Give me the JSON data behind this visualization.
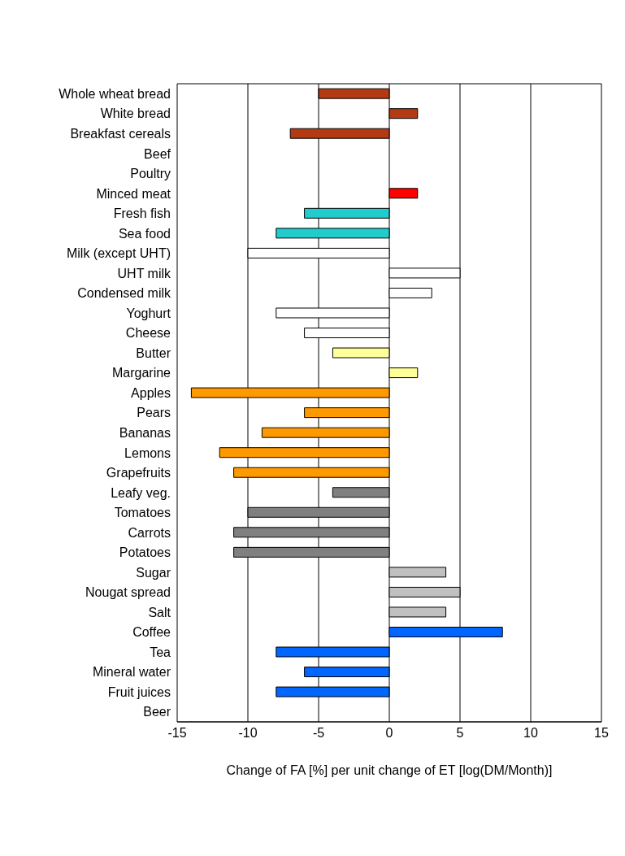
{
  "chart_data": {
    "type": "bar",
    "orientation": "horizontal",
    "xlabel": "Change of FA [%] per unit change of ET [log(DM/Month)]",
    "categories": [
      "Whole wheat bread",
      "White bread",
      "Breakfast cereals",
      "Beef",
      "Poultry",
      "Minced meat",
      "Fresh fish",
      "Sea food",
      "Milk (except UHT)",
      "UHT milk",
      "Condensed milk",
      "Yoghurt",
      "Cheese",
      "Butter",
      "Margarine",
      "Apples",
      "Pears",
      "Bananas",
      "Lemons",
      "Grapefruits",
      "Leafy veg.",
      "Tomatoes",
      "Carrots",
      "Potatoes",
      "Sugar",
      "Nougat spread",
      "Salt",
      "Coffee",
      "Tea",
      "Mineral water",
      "Fruit juices",
      "Beer"
    ],
    "values": [
      -5,
      2,
      -7,
      null,
      null,
      2,
      -6,
      -8,
      -10,
      5,
      3,
      -8,
      -6,
      -4,
      2,
      -14,
      -6,
      -9,
      -12,
      -11,
      -4,
      -10,
      -11,
      -11,
      4,
      5,
      4,
      8,
      -8,
      -6,
      -8,
      null
    ],
    "colors": [
      "#b33a12",
      "#b33a12",
      "#b33a12",
      "#b33a12",
      "#b33a12",
      "#ff0000",
      "#22cccc",
      "#22cccc",
      "#ffffff",
      "#ffffff",
      "#ffffff",
      "#ffffff",
      "#ffffff",
      "#ffff99",
      "#ffff99",
      "#ff9900",
      "#ff9900",
      "#ff9900",
      "#ff9900",
      "#ff9900",
      "#808080",
      "#808080",
      "#808080",
      "#808080",
      "#c0c0c0",
      "#c0c0c0",
      "#c0c0c0",
      "#0066ff",
      "#0066ff",
      "#0066ff",
      "#0066ff",
      "#0066ff"
    ],
    "xlim": [
      -15,
      15
    ],
    "xticks": [
      -15,
      -10,
      -5,
      0,
      5,
      10,
      15
    ],
    "grid": "x"
  }
}
